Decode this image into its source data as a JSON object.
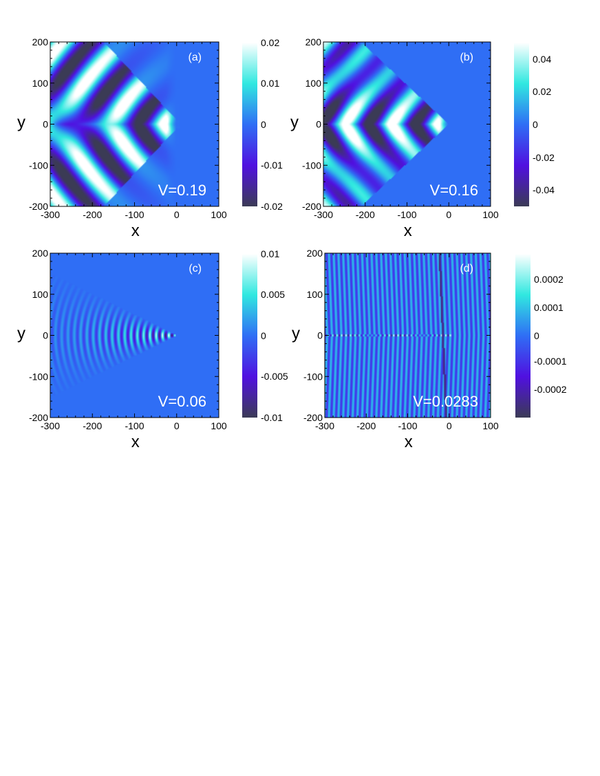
{
  "chart_data": [
    {
      "type": "heatmap",
      "panel_label": "(a)",
      "annotation": "V=0.19",
      "xlabel": "x",
      "ylabel": "y",
      "xlim": [
        -300,
        100
      ],
      "ylim": [
        -200,
        200
      ],
      "xticks": [
        "-300",
        "-200",
        "-100",
        "0",
        "100"
      ],
      "yticks": [
        "200",
        "100",
        "0",
        "-100",
        "-200"
      ],
      "colorbar": {
        "range": [
          -0.02,
          0.02
        ],
        "ticks": [
          "0.02",
          "0.01",
          "0",
          "-0.01",
          "-0.02"
        ]
      },
      "pattern": "wake",
      "V": 0.19
    },
    {
      "type": "heatmap",
      "panel_label": "(b)",
      "annotation": "V=0.16",
      "xlabel": "x",
      "ylabel": "y",
      "xlim": [
        -300,
        100
      ],
      "ylim": [
        -200,
        200
      ],
      "xticks": [
        "-300",
        "-200",
        "-100",
        "0",
        "100"
      ],
      "yticks": [
        "200",
        "100",
        "0",
        "-100",
        "-200"
      ],
      "colorbar": {
        "range": [
          -0.05,
          0.05
        ],
        "ticks": [
          "0.04",
          "0.02",
          "0",
          "-0.02",
          "-0.04"
        ]
      },
      "pattern": "wake-wedge",
      "V": 0.16
    },
    {
      "type": "heatmap",
      "panel_label": "(c)",
      "annotation": "V=0.06",
      "xlabel": "x",
      "ylabel": "y",
      "xlim": [
        -300,
        100
      ],
      "ylim": [
        -200,
        200
      ],
      "xticks": [
        "-300",
        "-200",
        "-100",
        "0",
        "100"
      ],
      "yticks": [
        "200",
        "100",
        "0",
        "-100",
        "-200"
      ],
      "colorbar": {
        "range": [
          -0.01,
          0.01
        ],
        "ticks": [
          "0.01",
          "0.005",
          "0",
          "-0.005",
          "-0.01"
        ]
      },
      "pattern": "rings",
      "V": 0.06
    },
    {
      "type": "heatmap",
      "panel_label": "(d)",
      "annotation": "V=0.0283",
      "xlabel": "x",
      "ylabel": "y",
      "xlim": [
        -300,
        100
      ],
      "ylim": [
        -200,
        200
      ],
      "xticks": [
        "-300",
        "-200",
        "-100",
        "0",
        "100"
      ],
      "yticks": [
        "200",
        "100",
        "0",
        "-100",
        "-200"
      ],
      "colorbar": {
        "range": [
          -0.0003,
          0.0003
        ],
        "ticks": [
          "0.0002",
          "0.0001",
          "0",
          "-0.0001",
          "-0.0002"
        ]
      },
      "pattern": "stripes",
      "V": 0.0283
    }
  ],
  "colormap": [
    "#3b3b55",
    "#5010e0",
    "#2f6ef5",
    "#30e8e0",
    "#ffffff"
  ]
}
